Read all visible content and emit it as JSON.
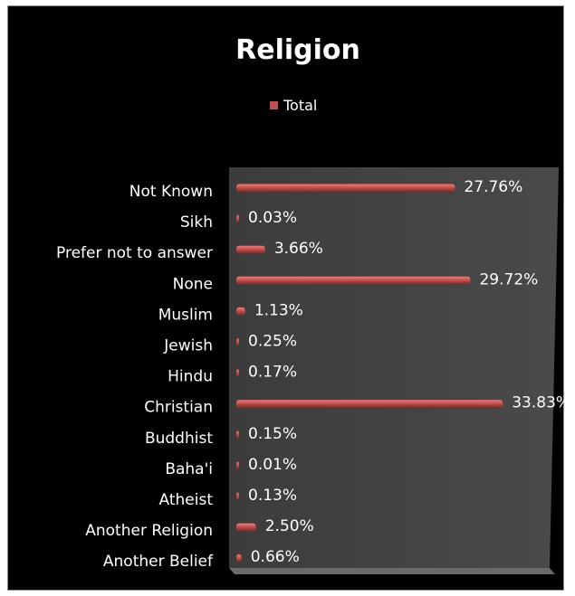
{
  "chart_data": {
    "type": "bar",
    "orientation": "horizontal",
    "title": "Religion",
    "legend": {
      "placement": "top",
      "entries": [
        "Total"
      ]
    },
    "categories": [
      "Not Known",
      "Sikh",
      "Prefer not to answer",
      "None",
      "Muslim",
      "Jewish",
      "Hindu",
      "Christian",
      "Buddhist",
      "Baha'i",
      "Atheist",
      "Another Religion",
      "Another Belief"
    ],
    "series": [
      {
        "name": "Total",
        "values": [
          27.76,
          0.03,
          3.66,
          29.72,
          1.13,
          0.25,
          0.17,
          33.83,
          0.15,
          0.01,
          0.13,
          2.5,
          0.66
        ],
        "labels": [
          "27.76%",
          "0.03%",
          "3.66%",
          "29.72%",
          "1.13%",
          "0.25%",
          "0.17%",
          "33.83%",
          "0.15%",
          "0.01%",
          "0.13%",
          "2.50%",
          "0.66%"
        ]
      }
    ],
    "xlim": [
      0,
      35
    ],
    "grid": false,
    "colors": {
      "bar": "#c0504d",
      "bar_highlight": "#e8807c",
      "plot_wall": "#3a3a3a",
      "text": "#ffffff",
      "background": "#000000"
    }
  }
}
